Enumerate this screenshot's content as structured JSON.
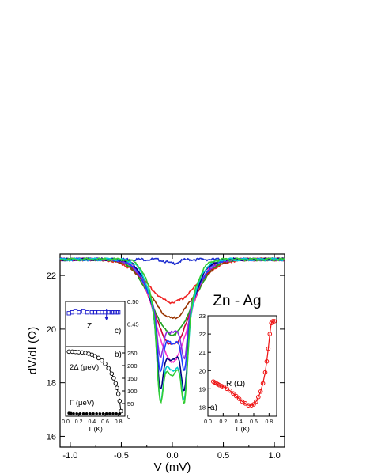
{
  "chart_data": [
    {
      "panel": "main",
      "type": "line",
      "annotation": "Zn - Ag",
      "xlabel": "V (mV)",
      "ylabel": "dV/dI (Ω)",
      "xlim": [
        -1.1,
        1.1
      ],
      "ylim": [
        15.6,
        22.8
      ],
      "xticks": [
        -1.0,
        -0.5,
        0.0,
        0.5,
        1.0
      ],
      "xtick_labels": [
        "-1.0",
        "-0.5",
        "0.0",
        "0.5",
        "1.0"
      ],
      "yticks": [
        16,
        18,
        20,
        22
      ],
      "ytick_labels": [
        "16",
        "18",
        "20",
        "22"
      ],
      "grid": false,
      "series": [
        {
          "color": "#1f2fd0",
          "min": 22.45,
          "dip_halfwidth": 0.08,
          "plateau": 22.6
        },
        {
          "color": "#ee2222",
          "min": 21.0,
          "dip_halfwidth": 0.3,
          "plateau": 22.6
        },
        {
          "color": "#993300",
          "min": 20.4,
          "dip_halfwidth": 0.27,
          "plateau": 22.6
        },
        {
          "color": "#20a020",
          "min": 19.8,
          "dip_halfwidth": 0.25,
          "plateau": 22.6
        },
        {
          "color": "#cc0033",
          "min": 19.4,
          "dip_halfwidth": 0.23,
          "plateau": 22.6
        },
        {
          "color": "#ff33cc",
          "min": 18.8,
          "dip_halfwidth": 0.21,
          "plateau": 22.6
        },
        {
          "color": "#8a2be2",
          "min": 18.4,
          "dip_halfwidth": 0.2,
          "plateau": 22.6
        },
        {
          "color": "#2040ff",
          "min": 17.8,
          "dip_halfwidth": 0.19,
          "plateau": 22.6
        },
        {
          "color": "#000080",
          "min": 16.8,
          "dip_halfwidth": 0.17,
          "plateau": 22.6
        },
        {
          "color": "#00cccc",
          "min": 16.2,
          "dip_halfwidth": 0.16,
          "plateau": 22.6
        },
        {
          "color": "#33cc33",
          "min": 15.95,
          "dip_halfwidth": 0.15,
          "plateau": 22.6
        }
      ]
    },
    {
      "panel": "inset-a",
      "type": "line",
      "panel_label": "a)",
      "series_label": "R (Ω)",
      "xlabel": "T (K)",
      "xlim": [
        0.0,
        0.9
      ],
      "ylim": [
        17.5,
        23.0
      ],
      "xticks": [
        0.0,
        0.2,
        0.4,
        0.6,
        0.8
      ],
      "xtick_labels": [
        "0.0",
        "0.2",
        "0.4",
        "0.6",
        "0.8"
      ],
      "yticks": [
        18,
        19,
        20,
        21,
        22,
        23
      ],
      "ytick_labels": [
        "18",
        "19",
        "20",
        "21",
        "22",
        "23"
      ],
      "series": [
        {
          "color": "#ee1111",
          "x": [
            0.07,
            0.09,
            0.11,
            0.13,
            0.15,
            0.18,
            0.21,
            0.25,
            0.29,
            0.33,
            0.37,
            0.41,
            0.45,
            0.49,
            0.53,
            0.57,
            0.6,
            0.63,
            0.66,
            0.69,
            0.72,
            0.75,
            0.77,
            0.79,
            0.81,
            0.83,
            0.85,
            0.87
          ],
          "y": [
            19.4,
            19.35,
            19.3,
            19.25,
            19.2,
            19.15,
            19.1,
            19.0,
            18.9,
            18.75,
            18.6,
            18.45,
            18.3,
            18.2,
            18.1,
            18.1,
            18.15,
            18.3,
            18.55,
            18.85,
            19.3,
            19.9,
            20.5,
            21.2,
            22.0,
            22.6,
            22.7,
            22.7
          ]
        }
      ]
    },
    {
      "panel": "inset-bc",
      "type": "scatter",
      "xlabel": "T (K)",
      "xlim": [
        0.0,
        0.9
      ],
      "xticks": [
        0.0,
        0.2,
        0.4,
        0.6,
        0.8
      ],
      "xtick_labels": [
        "0.0",
        "0.2",
        "0.4",
        "0.6",
        "0.8"
      ],
      "left_ylim": [
        0,
        275
      ],
      "left_yticks": [
        0,
        50,
        100,
        150,
        200,
        250
      ],
      "left_ytick_labels": [
        "0",
        "50",
        "100",
        "150",
        "200",
        "250"
      ],
      "right_ylim": [
        0.4,
        0.5
      ],
      "right_yticks": [
        0.45,
        0.5
      ],
      "right_ytick_labels": [
        "0.45",
        "0.50"
      ],
      "label_b": "b)",
      "label_c": "c)",
      "series": [
        {
          "name": "2Δ (μeV)",
          "color": "#000000",
          "marker": "open-circle",
          "x": [
            0.05,
            0.1,
            0.15,
            0.2,
            0.25,
            0.3,
            0.35,
            0.4,
            0.45,
            0.5,
            0.55,
            0.6,
            0.65,
            0.7,
            0.73,
            0.76,
            0.78,
            0.8,
            0.82,
            0.84
          ],
          "y": [
            255,
            255,
            254,
            253,
            252,
            250,
            247,
            243,
            237,
            230,
            220,
            207,
            190,
            168,
            150,
            130,
            112,
            88,
            60,
            20
          ]
        },
        {
          "name": "Γ (μeV)",
          "color": "#000000",
          "marker": "filled-circle",
          "x": [
            0.05,
            0.08,
            0.12,
            0.17,
            0.22,
            0.27,
            0.32,
            0.37,
            0.42,
            0.47,
            0.52,
            0.57,
            0.62,
            0.67,
            0.72,
            0.77,
            0.82
          ],
          "y": [
            12,
            11,
            10,
            10,
            10,
            10,
            10,
            10,
            10,
            10,
            10,
            10,
            10,
            10,
            10,
            10,
            10
          ]
        },
        {
          "name": "Z",
          "color": "#1a1acc",
          "marker": "open-square",
          "axis": "right",
          "x": [
            0.05,
            0.1,
            0.15,
            0.2,
            0.27,
            0.33,
            0.4,
            0.45,
            0.5,
            0.55,
            0.6,
            0.65,
            0.7,
            0.73,
            0.77,
            0.8
          ],
          "y": [
            0.474,
            0.476,
            0.478,
            0.476,
            0.478,
            0.476,
            0.476,
            0.476,
            0.476,
            0.476,
            0.476,
            0.476,
            0.476,
            0.476,
            0.476,
            0.476
          ]
        }
      ],
      "arrow_at_x": 0.62
    }
  ]
}
